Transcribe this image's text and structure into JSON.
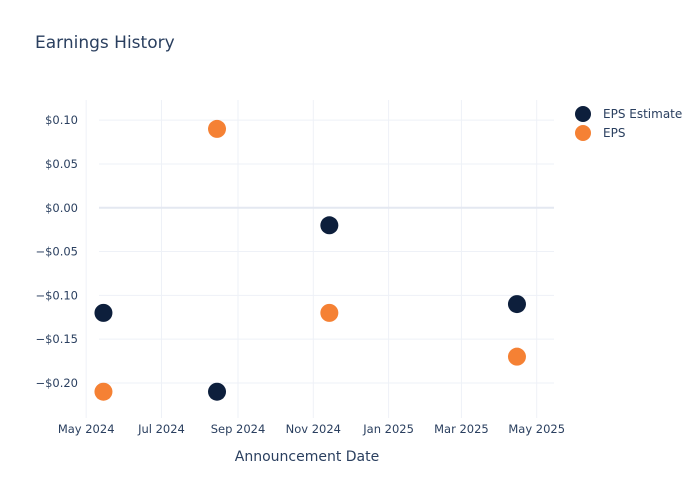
{
  "chart_data": {
    "type": "scatter",
    "title": "Earnings History",
    "xlabel": "Announcement Date",
    "ylabel": "",
    "x_ticks": [
      {
        "date": "2024-05-01",
        "label": "May 2024"
      },
      {
        "date": "2024-07-01",
        "label": "Jul 2024"
      },
      {
        "date": "2024-09-01",
        "label": "Sep 2024"
      },
      {
        "date": "2024-11-01",
        "label": "Nov 2024"
      },
      {
        "date": "2025-01-01",
        "label": "Jan 2025"
      },
      {
        "date": "2025-03-01",
        "label": "Mar 2025"
      },
      {
        "date": "2025-05-01",
        "label": "May 2025"
      }
    ],
    "y_ticks": [
      {
        "value": 0.1,
        "label": "$0.10"
      },
      {
        "value": 0.05,
        "label": "$0.05"
      },
      {
        "value": 0.0,
        "label": "$0.00"
      },
      {
        "value": -0.05,
        "label": "−$0.05"
      },
      {
        "value": -0.1,
        "label": "−$0.10"
      },
      {
        "value": -0.15,
        "label": "−$0.15"
      },
      {
        "value": -0.2,
        "label": "−$0.20"
      }
    ],
    "xlim": [
      "2024-04-26",
      "2025-05-15"
    ],
    "ylim": [
      -0.24,
      0.123
    ],
    "grid": true,
    "legend_position": "top-right",
    "series": [
      {
        "name": "EPS Estimate",
        "color": "#0d1f3c",
        "points": [
          {
            "x": "2024-05-15",
            "y": -0.12
          },
          {
            "x": "2024-08-15",
            "y": -0.21
          },
          {
            "x": "2024-11-14",
            "y": -0.02
          },
          {
            "x": "2025-04-15",
            "y": -0.11
          }
        ]
      },
      {
        "name": "EPS",
        "color": "#f58134",
        "points": [
          {
            "x": "2024-05-15",
            "y": -0.21
          },
          {
            "x": "2024-08-15",
            "y": 0.09
          },
          {
            "x": "2024-11-14",
            "y": -0.12
          },
          {
            "x": "2025-04-15",
            "y": -0.17
          }
        ]
      }
    ]
  }
}
